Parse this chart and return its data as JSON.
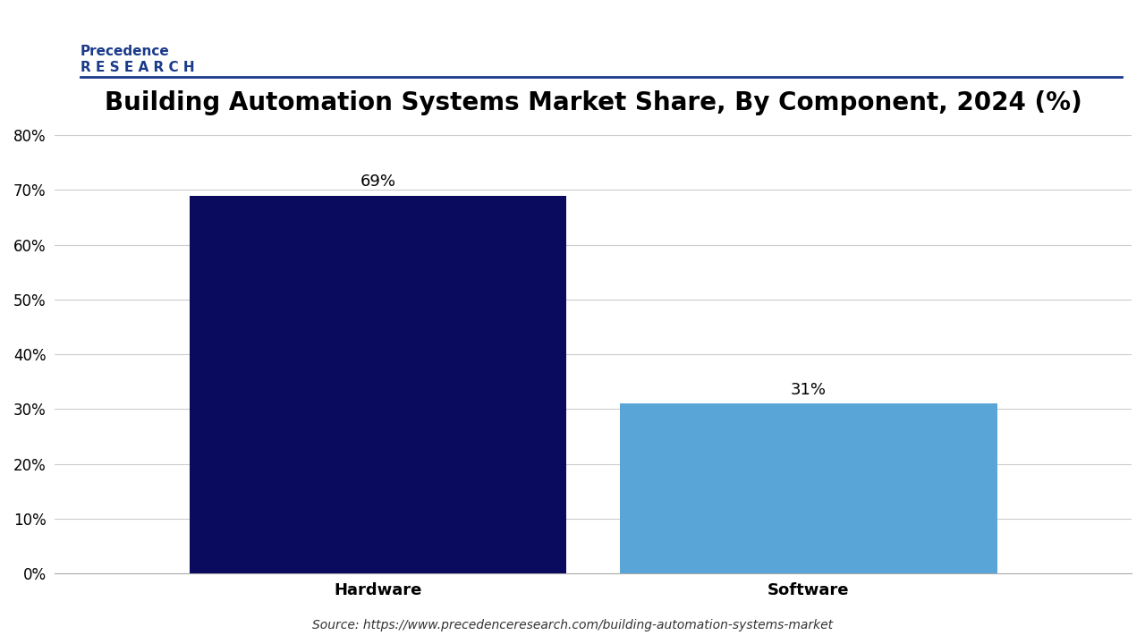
{
  "title": "Building Automation Systems Market Share, By Component, 2024 (%)",
  "categories": [
    "Hardware",
    "Software"
  ],
  "values": [
    69,
    31
  ],
  "bar_colors": [
    "#0a0a5e",
    "#5aa5d8"
  ],
  "value_labels": [
    "69%",
    "31%"
  ],
  "ylim": [
    0,
    80
  ],
  "yticks": [
    0,
    10,
    20,
    30,
    40,
    50,
    60,
    70,
    80
  ],
  "ytick_labels": [
    "0%",
    "10%",
    "20%",
    "30%",
    "40%",
    "50%",
    "60%",
    "70%",
    "80%"
  ],
  "source_text": "Source: https://www.precedenceresearch.com/building-automation-systems-market",
  "background_color": "#ffffff",
  "grid_color": "#cccccc",
  "title_fontsize": 20,
  "label_fontsize": 13,
  "value_fontsize": 13,
  "bar_width": 0.35
}
